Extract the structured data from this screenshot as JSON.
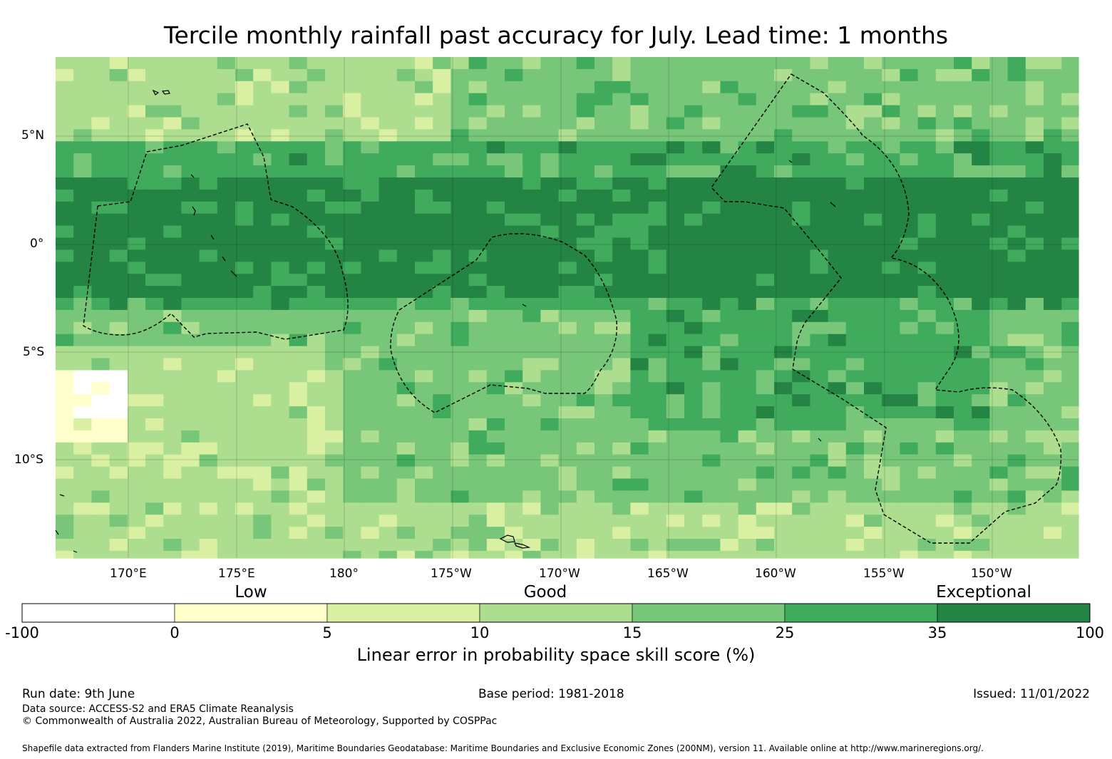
{
  "title": "Tercile monthly rainfall past accuracy for July. Lead time: 1 months",
  "map": {
    "lon_range": [
      "166.7°E",
      "145.7°W"
    ],
    "lat_range": [
      "8.7°N",
      "14.5°S"
    ],
    "latitude_labels": [
      "5°N",
      "0°",
      "5°S",
      "10°S"
    ],
    "longitude_labels": [
      "170°E",
      "175°E",
      "180°",
      "175°W",
      "170°W",
      "165°W",
      "160°W",
      "155°W",
      "150°W"
    ],
    "gridlines": true
  },
  "colorbar": {
    "category_labels": [
      "Low",
      "Good",
      "Exceptional"
    ],
    "ticks": [
      "-100",
      "0",
      "5",
      "10",
      "15",
      "25",
      "35",
      "100"
    ],
    "bins": [
      {
        "range": "-100 to 0",
        "color": "#ffffff"
      },
      {
        "range": "0 to 5",
        "color": "#ffffcc"
      },
      {
        "range": "5 to 10",
        "color": "#d9f0a3"
      },
      {
        "range": "10 to 15",
        "color": "#addd8e"
      },
      {
        "range": "15 to 25",
        "color": "#78c679"
      },
      {
        "range": "25 to 35",
        "color": "#41ab5d"
      },
      {
        "range": "35 to 100",
        "color": "#238443"
      }
    ],
    "title": "Linear error in probability space skill score (%)"
  },
  "footer": {
    "run_date": "Run date: 9th June",
    "base_period": "Base period: 1981-2018",
    "issued": "Issued: 11/01/2022",
    "data_source": "Data source: ACCESS-S2 and ERA5 Climate Reanalysis",
    "copyright": "© Commonwealth of Australia 2022, Australian Bureau of Meteorology, Supported by COSPPac",
    "shapefile_credit": "Shapefile data extracted from Flanders Marine Institute (2019), Maritime Boundaries Geodatabase: Maritime Boundaries and Exclusive Economic Zones (200NM), version 11. Available online at http://www.marineregions.org/."
  }
}
